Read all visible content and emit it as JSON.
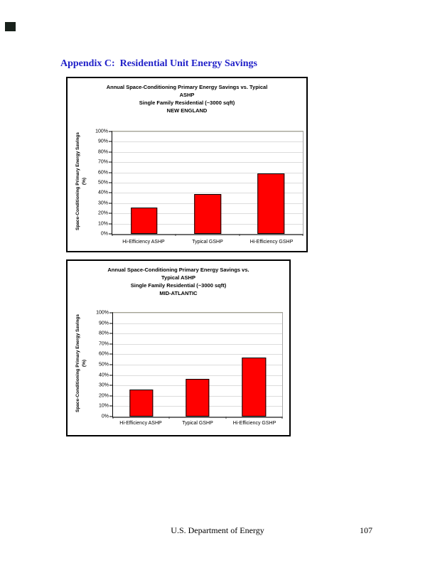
{
  "page": {
    "heading": "Appendix C:  Residential Unit Energy Savings",
    "footer": {
      "text": "U.S. Department of Energy",
      "page_number": "107"
    }
  },
  "colors": {
    "heading_blue": "#1f1fc8",
    "bar_red": "#ff0000"
  },
  "chart_data": [
    {
      "type": "bar",
      "title": "Annual Space-Conditioning Primary Energy Savings vs. Typical ASHP Single Family Residential (~3000 sqft) NEW ENGLAND",
      "title_lines": [
        "Annual Space-Conditioning Primary Energy Savings vs. Typical",
        "ASHP",
        "Single Family Residential (~3000 sqft)",
        "NEW ENGLAND"
      ],
      "region": "NEW ENGLAND",
      "ylabel": "Space-Conditioning Primary Energy Savings (%)",
      "ylabel_lines": [
        "Space-Conditioning Primary Energy Savings",
        "(%)"
      ],
      "xlabel": "",
      "categories": [
        "Hi-Efficiency ASHP",
        "Typical GSHP",
        "Hi-Efficiency GSHP"
      ],
      "values": [
        26,
        39,
        59
      ],
      "y_tick_labels": [
        "0%",
        "10%",
        "20%",
        "30%",
        "40%",
        "50%",
        "60%",
        "70%",
        "80%",
        "90%",
        "100%"
      ],
      "ylim": [
        0,
        100
      ],
      "grid": true,
      "legend": false,
      "bar_color": "#ff0000"
    },
    {
      "type": "bar",
      "title": "Annual Space-Conditioning Primary Energy Savings vs. Typical ASHP Single Family Residential (~3000 sqft) MID-ATLANTIC",
      "title_lines": [
        "Annual Space-Conditioning Primary Energy Savings vs.",
        "Typical ASHP",
        "Single Family Residential (~3000 sqft)",
        "MID-ATLANTIC"
      ],
      "region": "MID-ATLANTIC",
      "ylabel": "Space-Conditioning Primary Energy Savings (%)",
      "ylabel_lines": [
        "Space-Conditioning Primary Energy Savings",
        "(%)"
      ],
      "xlabel": "",
      "categories": [
        "Hi-Efficiency ASHP",
        "Typical GSHP",
        "Hi-Efficiency GSHP"
      ],
      "values": [
        26,
        36,
        57
      ],
      "y_tick_labels": [
        "0%",
        "10%",
        "20%",
        "30%",
        "40%",
        "50%",
        "60%",
        "70%",
        "80%",
        "90%",
        "100%"
      ],
      "ylim": [
        0,
        100
      ],
      "grid": true,
      "legend": false,
      "bar_color": "#ff0000"
    }
  ]
}
